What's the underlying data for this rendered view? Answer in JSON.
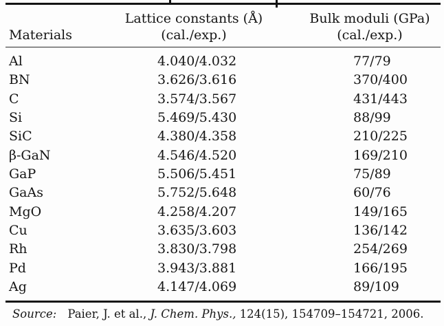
{
  "header": {
    "materials": "Materials",
    "lattice_line1": "Lattice constants (Å)",
    "lattice_line2": "(cal./exp.)",
    "bulk_line1": "Bulk moduli (GPa)",
    "bulk_line2": "(cal./exp.)"
  },
  "rows": [
    {
      "material": "Al",
      "lattice": "4.040/4.032",
      "bulk": "77/79"
    },
    {
      "material": "BN",
      "lattice": "3.626/3.616",
      "bulk": "370/400"
    },
    {
      "material": "C",
      "lattice": "3.574/3.567",
      "bulk": "431/443"
    },
    {
      "material": "Si",
      "lattice": "5.469/5.430",
      "bulk": "88/99"
    },
    {
      "material": "SiC",
      "lattice": "4.380/4.358",
      "bulk": "210/225"
    },
    {
      "material": "β-GaN",
      "lattice": "4.546/4.520",
      "bulk": "169/210"
    },
    {
      "material": "GaP",
      "lattice": "5.506/5.451",
      "bulk": "75/89"
    },
    {
      "material": "GaAs",
      "lattice": "5.752/5.648",
      "bulk": "60/76"
    },
    {
      "material": "MgO",
      "lattice": "4.258/4.207",
      "bulk": "149/165"
    },
    {
      "material": "Cu",
      "lattice": "3.635/3.603",
      "bulk": "136/142"
    },
    {
      "material": "Rh",
      "lattice": "3.830/3.798",
      "bulk": "254/269"
    },
    {
      "material": "Pd",
      "lattice": "3.943/3.881",
      "bulk": "166/195"
    },
    {
      "material": "Ag",
      "lattice": "4.147/4.069",
      "bulk": "89/109"
    }
  ],
  "source": {
    "label": "Source:",
    "pre": "Paier, J. et al., ",
    "journal": "J. Chem. Phys.,",
    "post": " 124(15), 154709–154721, 2006."
  },
  "colors": {
    "background": "#fdfdfd",
    "text": "#151515",
    "rule": "#131313"
  }
}
